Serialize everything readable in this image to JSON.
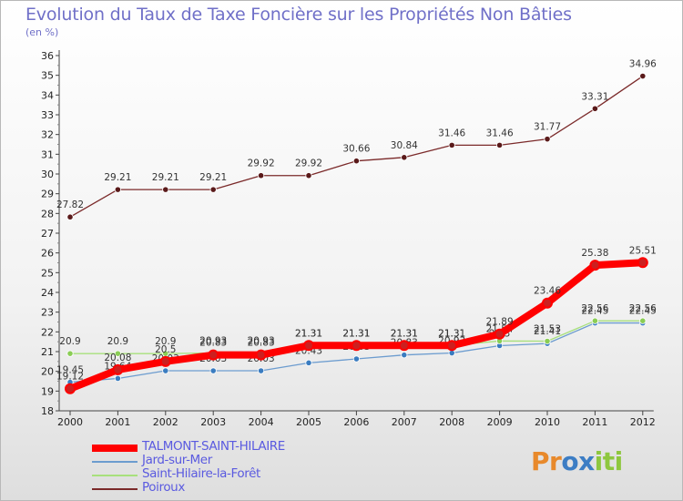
{
  "title": "Evolution du Taux de Taxe Foncière sur les Propriétés Non Bâties",
  "unit_label": "(en %)",
  "logo": {
    "letters": [
      "P",
      "r",
      "o",
      "x",
      "i",
      "t",
      "i"
    ],
    "colors": [
      "#e8892b",
      "#e8892b",
      "#3c7dc4",
      "#3c7dc4",
      "#8ec73f",
      "#8ec73f",
      "#8ec73f"
    ]
  },
  "chart_data": {
    "type": "line",
    "title": "Evolution du Taux de Taxe Foncière sur les Propriétés Non Bâties",
    "ylabel": "(en %)",
    "xlabel": "",
    "x": [
      "2000",
      "2001",
      "2002",
      "2003",
      "2004",
      "2005",
      "2006",
      "2007",
      "2008",
      "2009",
      "2010",
      "2011",
      "2012"
    ],
    "ylim": [
      18,
      36
    ],
    "yticks": [
      18,
      19,
      20,
      21,
      22,
      23,
      24,
      25,
      26,
      27,
      28,
      29,
      30,
      31,
      32,
      33,
      34,
      35,
      36
    ],
    "series": [
      {
        "name": "Poiroux",
        "color": "#7b2a2a",
        "marker": "#5a1a1a",
        "values": [
          27.82,
          29.21,
          29.21,
          29.21,
          29.92,
          29.92,
          30.66,
          30.84,
          31.46,
          31.46,
          31.77,
          33.31,
          34.96
        ],
        "labels": [
          "27.82",
          "29.21",
          "29.21",
          "29.21",
          "29.92",
          "29.92",
          "30.66",
          "30.84",
          "31.46",
          "31.46",
          "31.77",
          "33.31",
          "34.96"
        ]
      },
      {
        "name": "Jard-sur-Mer",
        "color": "#6c9ccf",
        "marker": "#3a7cc0",
        "values": [
          19.45,
          19.64,
          20.03,
          20.03,
          20.03,
          20.43,
          20.63,
          20.83,
          20.93,
          21.3,
          21.41,
          22.45,
          22.45
        ],
        "labels": [
          "19.45",
          "19.64",
          "20.03",
          "20.03",
          "20.03",
          "20.43",
          "20.63",
          "20.83",
          "20.93",
          "21.3",
          "21.41",
          "22.45",
          "22.45"
        ]
      },
      {
        "name": "Saint-Hilaire-la-Forêt",
        "color": "#a8e07c",
        "marker": "#8acd55",
        "values": [
          20.9,
          20.9,
          20.9,
          20.93,
          20.93,
          21.31,
          21.31,
          21.31,
          21.31,
          21.54,
          21.53,
          22.56,
          22.56
        ],
        "labels": [
          "20.9",
          "20.9",
          "20.9",
          "20.93",
          "20.93",
          "21.31",
          "21.31",
          "21.31",
          "21.31",
          "21.54",
          "21.53",
          "22.56",
          "22.56"
        ]
      },
      {
        "name": "TALMONT-SAINT-HILAIRE",
        "color": "#ff0000",
        "marker": "#cc2020",
        "values": [
          19.12,
          20.08,
          20.5,
          20.83,
          20.83,
          21.31,
          21.31,
          21.31,
          21.31,
          21.89,
          23.46,
          25.38,
          25.51
        ],
        "labels": [
          "19.12",
          "20.08",
          "20.5",
          "20.83",
          "20.83",
          "21.31",
          "21.31",
          "21.31",
          "21.31",
          "21.89",
          "23.46",
          "25.38",
          "25.51"
        ]
      }
    ],
    "legend_order": [
      "TALMONT-SAINT-HILAIRE",
      "Jard-sur-Mer",
      "Saint-Hilaire-la-Forêt",
      "Poiroux"
    ],
    "legend_position": "bottom-left",
    "grid": false
  }
}
